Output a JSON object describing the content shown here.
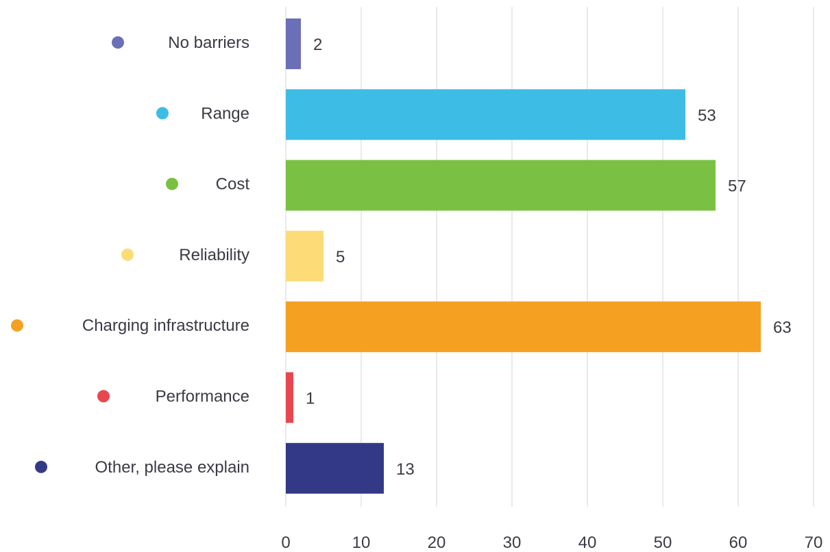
{
  "chart_data": {
    "type": "bar",
    "orientation": "horizontal",
    "categories": [
      "No barriers",
      "Range",
      "Cost",
      "Reliability",
      "Charging infrastructure",
      "Performance",
      "Other, please explain"
    ],
    "values": [
      2,
      53,
      57,
      5,
      63,
      1,
      13
    ],
    "colors": [
      "#6a6fb8",
      "#3dbde6",
      "#7ac143",
      "#fddc78",
      "#f5a021",
      "#e8474f",
      "#343987"
    ],
    "xlim": [
      0,
      70
    ],
    "xticks": [
      0,
      10,
      20,
      30,
      40,
      50,
      60,
      70
    ],
    "grid": true,
    "legend_markers": "dot-left-of-label"
  }
}
